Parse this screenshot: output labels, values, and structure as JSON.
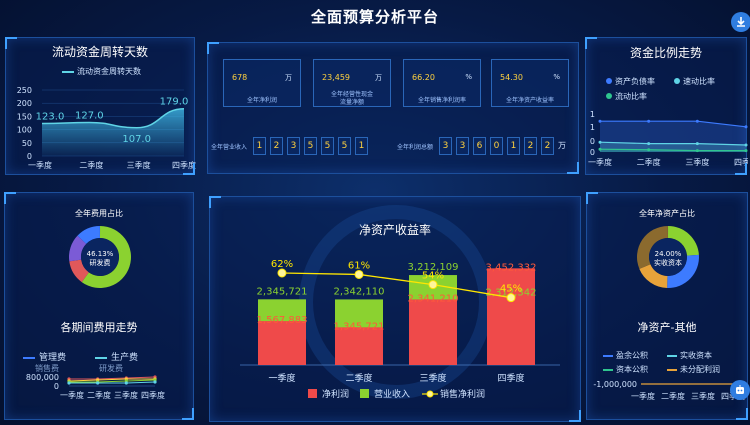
{
  "page": {
    "title": "全面预算分析平台"
  },
  "colors": {
    "accent": "#2f7de0",
    "yellow": "#ffd23f",
    "red": "#ef4a4a",
    "green": "#8bd230",
    "cyan": "#5fd4e6"
  },
  "panel_turnover": {
    "title": "流动资金周转天数",
    "legend": "流动资金周转天数",
    "chart_data": {
      "type": "area",
      "categories": [
        "一季度",
        "二季度",
        "三季度",
        "四季度"
      ],
      "series": [
        {
          "name": "流动资金周转天数",
          "values": [
            123.0,
            127.0,
            107.0,
            179.0
          ]
        }
      ],
      "data_labels": [
        "123.0",
        "127.0",
        "107.0",
        "179.0"
      ],
      "yticks": [
        "0",
        "50",
        "100",
        "150",
        "200",
        "250"
      ],
      "ylim": [
        0,
        250
      ]
    }
  },
  "kpis": [
    {
      "value": "678",
      "unit": "万",
      "label": "全年净利润"
    },
    {
      "value": "23,459",
      "unit": "万",
      "label": "全年经营性现金流量净额"
    },
    {
      "value": "66.20",
      "unit": "%",
      "label": "全年销售净利润率"
    },
    {
      "value": "54.30",
      "unit": "%",
      "label": "全年净资产收益率"
    }
  ],
  "counters": [
    {
      "label": "全年营业收入",
      "digits": [
        "1",
        "2",
        "3",
        "5",
        "5",
        "5",
        "1"
      ],
      "unit": ""
    },
    {
      "label": "全年利润总额",
      "digits": [
        "3",
        "3",
        "6",
        "0",
        "1",
        "2",
        "2"
      ],
      "unit": "万"
    }
  ],
  "panel_capital_ratio": {
    "title": "资金比例走势",
    "legend": [
      "资产负债率",
      "速动比率",
      "流动比率"
    ],
    "chart_data": {
      "type": "line",
      "categories": [
        "一季度",
        "二季度",
        "三季度",
        "四季度"
      ],
      "series": [
        {
          "name": "资产负债率",
          "values": [
            1.1,
            1.1,
            1.1,
            0.9
          ]
        },
        {
          "name": "速动比率",
          "values": [
            0.35,
            0.3,
            0.3,
            0.25
          ]
        },
        {
          "name": "流动比率",
          "values": [
            0.1,
            0.08,
            0.05,
            0.05
          ]
        }
      ],
      "yticks": [
        "0",
        "0",
        "1",
        "1"
      ]
    }
  },
  "panel_expense": {
    "subtitle": "全年费用占比",
    "pie": {
      "label_value": "46.13%",
      "label_name": "研发费"
    },
    "title2": "各期间费用走势",
    "legend": [
      "管理费",
      "生产费"
    ],
    "legend_row2": [
      "销售费",
      "研发费"
    ],
    "chart_data": {
      "type": "line",
      "categories": [
        "一季度",
        "二季度",
        "三季度",
        "四季度"
      ],
      "yticks": [
        "0",
        "800,000"
      ]
    }
  },
  "panel_roe": {
    "title": "净资产收益率",
    "legend": [
      "净利润",
      "营业收入",
      "销售净利润"
    ],
    "chart_data": {
      "type": "bar",
      "categories": [
        "一季度",
        "二季度",
        "三季度",
        "四季度"
      ],
      "series": [
        {
          "name": "净利润",
          "values": [
            1567883,
            1345721,
            2341210,
            3452332
          ],
          "labels": [
            "1,567,883",
            "1,345,721",
            "2,341,210",
            "3,452,332"
          ]
        },
        {
          "name": "营业收入",
          "values": [
            2345721,
            2342110,
            3212109,
            2312342
          ],
          "labels": [
            "2,345,721",
            "2,342,110",
            "3,212,109",
            "2,312,342"
          ]
        },
        {
          "name": "销售净利润",
          "values": [
            62,
            61,
            54,
            45
          ],
          "labels": [
            "62%",
            "61%",
            "54%",
            "45%"
          ]
        }
      ]
    }
  },
  "panel_equity": {
    "subtitle": "全年净资产占比",
    "pie": {
      "label_value": "24.00%",
      "label_name": "实收资本"
    },
    "title2": "净资产-其他",
    "legend": [
      "盈余公积",
      "实收资本",
      "资本公积",
      "未分配利润"
    ],
    "chart_data": {
      "type": "line",
      "categories": [
        "一季度",
        "二季度",
        "三季度",
        "四季度"
      ],
      "yticks": [
        "-1,000,000"
      ]
    }
  }
}
